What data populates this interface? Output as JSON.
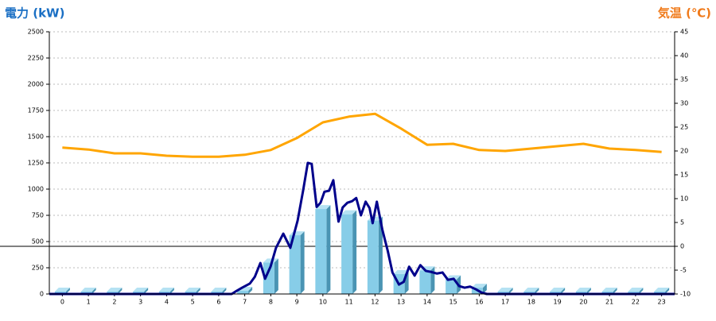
{
  "chart_data": {
    "type": "bar_line",
    "y_label": "電力 (kW)",
    "y2_label": "気温 (℃)",
    "categories": [
      "0",
      "1",
      "2",
      "3",
      "4",
      "5",
      "6",
      "7",
      "8",
      "9",
      "10",
      "11",
      "12",
      "13",
      "14",
      "15",
      "16",
      "17",
      "18",
      "19",
      "20",
      "21",
      "22",
      "23"
    ],
    "ylim": [
      0,
      2500
    ],
    "yticks": [
      0,
      250,
      500,
      750,
      1000,
      1250,
      1500,
      1750,
      2000,
      2250,
      2500
    ],
    "y2lim": [
      -10,
      45
    ],
    "y2ticks": [
      -10,
      -5,
      0,
      5,
      10,
      15,
      20,
      25,
      30,
      35,
      40,
      45
    ],
    "grid": true,
    "y2_zero_line": true,
    "series": [
      {
        "kind": "bar",
        "color": "#87cde8",
        "values": [
          0,
          0,
          0,
          0,
          0,
          0,
          0,
          30,
          300,
          560,
          810,
          760,
          700,
          190,
          225,
          140,
          60,
          0,
          0,
          0,
          0,
          0,
          0,
          0
        ]
      },
      {
        "kind": "line",
        "color": "#00008b",
        "x": [
          -0.5,
          6.5,
          6.69,
          6.9,
          7.2,
          7.39,
          7.6,
          7.78,
          7.99,
          8.2,
          8.48,
          8.75,
          9.03,
          9.24,
          9.42,
          9.57,
          9.76,
          9.91,
          10.06,
          10.24,
          10.4,
          10.6,
          10.76,
          10.94,
          11.12,
          11.28,
          11.46,
          11.64,
          11.79,
          11.91,
          12.07,
          12.28,
          12.49,
          12.67,
          12.92,
          13.1,
          13.31,
          13.52,
          13.74,
          13.95,
          14.16,
          14.38,
          14.59,
          14.8,
          15.02,
          15.23,
          15.44,
          15.65,
          15.87,
          16.08,
          16.29,
          23.5
        ],
        "values": [
          0,
          0,
          30,
          60,
          100,
          165,
          295,
          145,
          260,
          440,
          575,
          440,
          700,
          985,
          1250,
          1240,
          830,
          870,
          975,
          985,
          1085,
          690,
          825,
          870,
          885,
          915,
          750,
          880,
          820,
          675,
          880,
          615,
          410,
          205,
          90,
          115,
          260,
          175,
          275,
          220,
          210,
          195,
          205,
          135,
          145,
          75,
          60,
          70,
          45,
          15,
          0,
          0
        ]
      },
      {
        "kind": "line",
        "axis": "y2",
        "color": "#ffa500",
        "values": [
          20.7,
          20.3,
          19.5,
          19.5,
          19.0,
          18.8,
          18.8,
          19.2,
          20.2,
          22.7,
          26.0,
          27.2,
          27.8,
          24.7,
          21.3,
          21.5,
          20.2,
          20.0,
          20.5,
          21.0,
          21.5,
          20.5,
          20.2,
          19.8
        ]
      }
    ]
  }
}
